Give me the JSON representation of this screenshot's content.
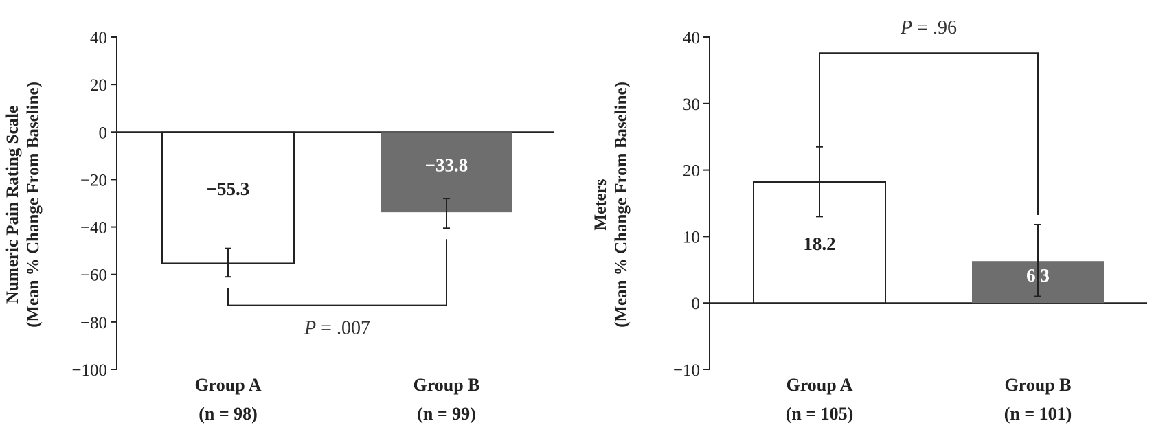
{
  "chart_data": [
    {
      "type": "bar",
      "ylabel_line1": "Numeric Pain Rating Scale",
      "ylabel_line2": "(Mean % Change From Baseline)",
      "ylim": [
        -100,
        40
      ],
      "yticks": [
        40,
        20,
        0,
        -20,
        -40,
        -60,
        -80,
        -100
      ],
      "ytick_labels": [
        "40",
        "20",
        "0",
        "−20",
        "−40",
        "−60",
        "−80",
        "−100"
      ],
      "categories": [
        {
          "label": "Group A",
          "n": "(n = 98)"
        },
        {
          "label": "Group B",
          "n": "(n = 99)"
        }
      ],
      "values": [
        -55.3,
        -33.8
      ],
      "value_labels": [
        "−55.3",
        "−33.8"
      ],
      "error_low": [
        -61.0,
        -40.5
      ],
      "error_high": [
        -49.0,
        -28.0
      ],
      "fills": [
        "#ffffff",
        "#6e6e6e"
      ],
      "label_colors": [
        "#222222",
        "#ffffff"
      ],
      "comparison": {
        "p_italic": "P",
        "p_rest": " = .007",
        "bracket_y": -73,
        "side": "below"
      },
      "grid": false
    },
    {
      "type": "bar",
      "ylabel_line1": "Meters",
      "ylabel_line2": "(Mean % Change From Baseline)",
      "ylim": [
        -10,
        40
      ],
      "yticks": [
        40,
        30,
        20,
        10,
        0,
        -10
      ],
      "ytick_labels": [
        "40",
        "30",
        "20",
        "10",
        "0",
        "−10"
      ],
      "categories": [
        {
          "label": "Group A",
          "n": "(n = 105)"
        },
        {
          "label": "Group B",
          "n": "(n = 101)"
        }
      ],
      "values": [
        18.2,
        6.3
      ],
      "value_labels": [
        "18.2",
        "6.3"
      ],
      "error_low": [
        13.0,
        1.0
      ],
      "error_high": [
        23.5,
        11.8
      ],
      "fills": [
        "#ffffff",
        "#6e6e6e"
      ],
      "label_colors": [
        "#222222",
        "#ffffff"
      ],
      "comparison": {
        "p_italic": "P",
        "p_rest": " = .96",
        "bracket_y": 37.6,
        "side": "above"
      },
      "grid": false
    }
  ]
}
